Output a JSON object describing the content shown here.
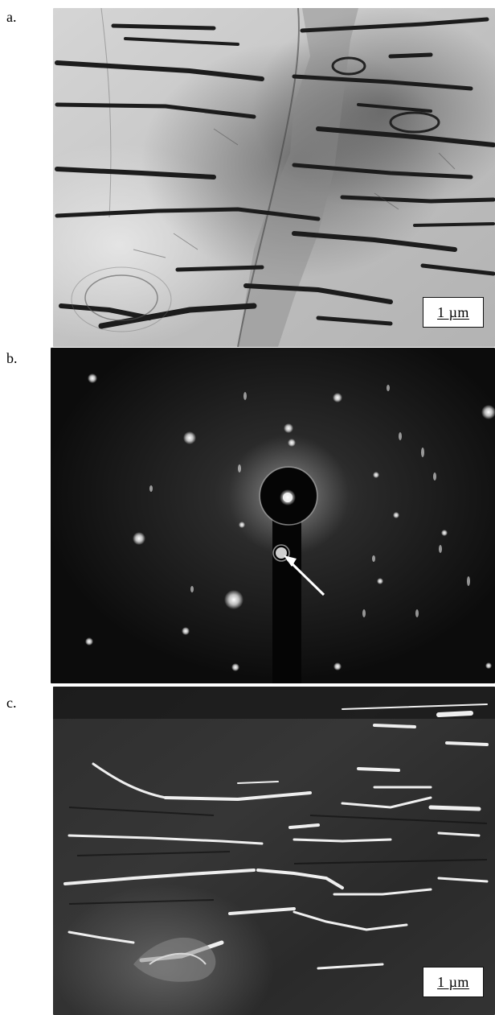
{
  "panels": {
    "a": {
      "label": "a.",
      "scale_bar": "1 µm"
    },
    "b": {
      "label": "b."
    },
    "c": {
      "label": "c.",
      "scale_bar": "1 µm"
    }
  }
}
